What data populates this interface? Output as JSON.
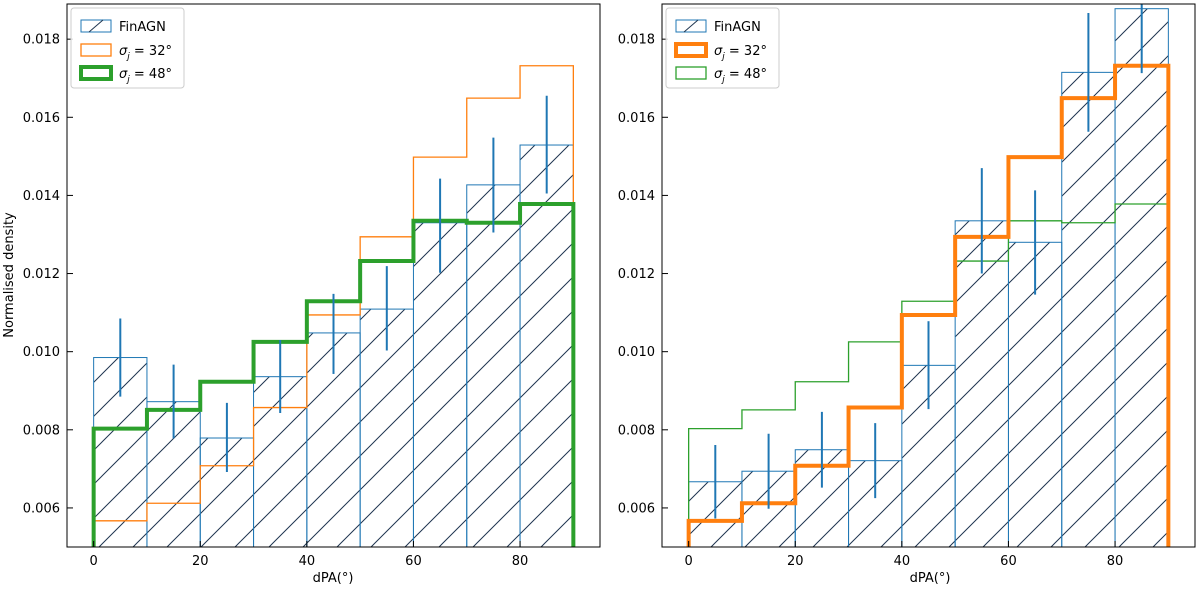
{
  "chart_data": [
    {
      "type": "histogram",
      "panel": "left",
      "xlabel": "dPA(°)",
      "ylabel": "Normalised density",
      "xlim": [
        -5,
        95
      ],
      "ylim": [
        0.005,
        0.0189
      ],
      "xticks": [
        0,
        20,
        40,
        60,
        80
      ],
      "yticks": [
        0.006,
        0.008,
        0.01,
        0.012,
        0.014,
        0.016,
        0.018
      ],
      "ytick_labels": [
        "0.006",
        "0.008",
        "0.010",
        "0.012",
        "0.014",
        "0.016",
        "0.018"
      ],
      "bin_edges": [
        0,
        10,
        20,
        30,
        40,
        50,
        60,
        70,
        80,
        90
      ],
      "legend_position": "top-left",
      "series": [
        {
          "name": "FinAGN",
          "label": "FinAGN",
          "style": "hatched",
          "color": "#1f77b4",
          "values": [
            0.00985,
            0.00872,
            0.00779,
            0.00936,
            0.01048,
            0.01109,
            0.0133,
            0.01427,
            0.01529
          ],
          "err_lower": [
            0.00885,
            0.00778,
            0.00692,
            0.00843,
            0.00943,
            0.01003,
            0.01202,
            0.01305,
            0.01405
          ],
          "err_upper": [
            0.01085,
            0.00967,
            0.00869,
            0.0103,
            0.01148,
            0.01219,
            0.01443,
            0.01548,
            0.01655
          ]
        },
        {
          "name": "sigma_j = 32°",
          "label_main": "σ",
          "label_sub": "j",
          "label_rest": " = 32°",
          "style": "thin",
          "color": "#ff7f0e",
          "values": [
            0.00567,
            0.00612,
            0.00708,
            0.00857,
            0.01094,
            0.01294,
            0.01498,
            0.01649,
            0.01732
          ]
        },
        {
          "name": "sigma_j = 48°",
          "label_main": "σ",
          "label_sub": "j",
          "label_rest": " = 48°",
          "style": "thick",
          "color": "#2ca02c",
          "values": [
            0.00803,
            0.00851,
            0.00923,
            0.01025,
            0.01129,
            0.01232,
            0.01335,
            0.0133,
            0.01378
          ]
        }
      ]
    },
    {
      "type": "histogram",
      "panel": "right",
      "xlabel": "dPA(°)",
      "ylabel": "",
      "xlim": [
        -5,
        95
      ],
      "ylim": [
        0.005,
        0.0189
      ],
      "xticks": [
        0,
        20,
        40,
        60,
        80
      ],
      "yticks": [
        0.006,
        0.008,
        0.01,
        0.012,
        0.014,
        0.016,
        0.018
      ],
      "ytick_labels": [
        "0.006",
        "0.008",
        "0.010",
        "0.012",
        "0.014",
        "0.016",
        "0.018"
      ],
      "bin_edges": [
        0,
        10,
        20,
        30,
        40,
        50,
        60,
        70,
        80,
        90
      ],
      "legend_position": "top-left",
      "series": [
        {
          "name": "FinAGN",
          "label": "FinAGN",
          "style": "hatched",
          "color": "#1f77b4",
          "values": [
            0.00667,
            0.00694,
            0.00749,
            0.00721,
            0.00965,
            0.01335,
            0.0128,
            0.01715,
            0.01878
          ],
          "err_lower": [
            0.00573,
            0.00598,
            0.00652,
            0.00625,
            0.00853,
            0.012,
            0.01146,
            0.01563,
            0.01713
          ],
          "err_upper": [
            0.00761,
            0.0079,
            0.00846,
            0.00817,
            0.01078,
            0.0147,
            0.01413,
            0.01867,
            0.0204
          ]
        },
        {
          "name": "sigma_j = 32°",
          "label_main": "σ",
          "label_sub": "j",
          "label_rest": " = 32°",
          "style": "thick",
          "color": "#ff7f0e",
          "values": [
            0.00567,
            0.00612,
            0.00708,
            0.00857,
            0.01094,
            0.01294,
            0.01498,
            0.01649,
            0.01732
          ]
        },
        {
          "name": "sigma_j = 48°",
          "label_main": "σ",
          "label_sub": "j",
          "label_rest": " = 48°",
          "style": "thin",
          "color": "#2ca02c",
          "values": [
            0.00803,
            0.00851,
            0.00923,
            0.01025,
            0.01129,
            0.01232,
            0.01335,
            0.0133,
            0.01378
          ]
        }
      ]
    }
  ]
}
